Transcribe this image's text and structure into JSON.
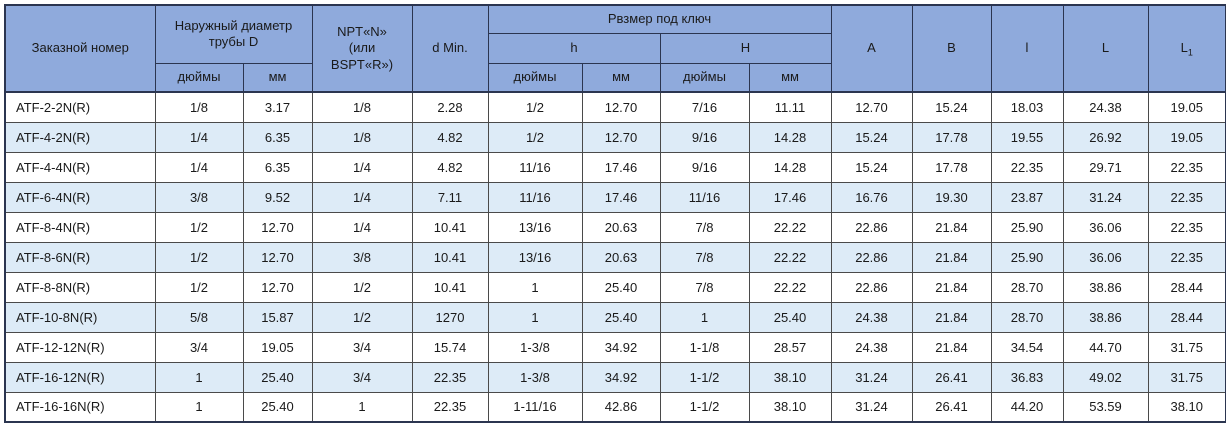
{
  "colors": {
    "header_bg": "#8FAADC",
    "row_bg": "#FFFFFF",
    "row_alt_bg": "#DDEBF7",
    "border": "#4A4A4A",
    "header_border": "#2B3550",
    "text": "#1A1A1A"
  },
  "table": {
    "header": {
      "order_number": "Заказной номер",
      "outer_diameter": "Наружный диаметр трубы D",
      "npt_label": "NPT«N»\n(или\nBSPT«R»)",
      "d_min": "d Min.",
      "wrench_size": "Рвзмер под ключ",
      "h_small": "h",
      "h_big": "H",
      "inches": "дюймы",
      "mm": "мм",
      "a": "A",
      "b": "B",
      "l_small": "l",
      "l_big": "L",
      "l1_base": "L",
      "l1_sub": "1"
    },
    "rows": [
      [
        "ATF-2-2N(R)",
        "1/8",
        "3.17",
        "1/8",
        "2.28",
        "1/2",
        "12.70",
        "7/16",
        "11.11",
        "12.70",
        "15.24",
        "18.03",
        "24.38",
        "19.05"
      ],
      [
        "ATF-4-2N(R)",
        "1/4",
        "6.35",
        "1/8",
        "4.82",
        "1/2",
        "12.70",
        "9/16",
        "14.28",
        "15.24",
        "17.78",
        "19.55",
        "26.92",
        "19.05"
      ],
      [
        "ATF-4-4N(R)",
        "1/4",
        "6.35",
        "1/4",
        "4.82",
        "11/16",
        "17.46",
        "9/16",
        "14.28",
        "15.24",
        "17.78",
        "22.35",
        "29.71",
        "22.35"
      ],
      [
        "ATF-6-4N(R)",
        "3/8",
        "9.52",
        "1/4",
        "7.11",
        "11/16",
        "17.46",
        "11/16",
        "17.46",
        "16.76",
        "19.30",
        "23.87",
        "31.24",
        "22.35"
      ],
      [
        "ATF-8-4N(R)",
        "1/2",
        "12.70",
        "1/4",
        "10.41",
        "13/16",
        "20.63",
        "7/8",
        "22.22",
        "22.86",
        "21.84",
        "25.90",
        "36.06",
        "22.35"
      ],
      [
        "ATF-8-6N(R)",
        "1/2",
        "12.70",
        "3/8",
        "10.41",
        "13/16",
        "20.63",
        "7/8",
        "22.22",
        "22.86",
        "21.84",
        "25.90",
        "36.06",
        "22.35"
      ],
      [
        "ATF-8-8N(R)",
        "1/2",
        "12.70",
        "1/2",
        "10.41",
        "1",
        "25.40",
        "7/8",
        "22.22",
        "22.86",
        "21.84",
        "28.70",
        "38.86",
        "28.44"
      ],
      [
        "ATF-10-8N(R)",
        "5/8",
        "15.87",
        "1/2",
        "1270",
        "1",
        "25.40",
        "1",
        "25.40",
        "24.38",
        "21.84",
        "28.70",
        "38.86",
        "28.44"
      ],
      [
        "ATF-12-12N(R)",
        "3/4",
        "19.05",
        "3/4",
        "15.74",
        "1-3/8",
        "34.92",
        "1-1/8",
        "28.57",
        "24.38",
        "21.84",
        "34.54",
        "44.70",
        "31.75"
      ],
      [
        "ATF-16-12N(R)",
        "1",
        "25.40",
        "3/4",
        "22.35",
        "1-3/8",
        "34.92",
        "1-1/2",
        "38.10",
        "31.24",
        "26.41",
        "36.83",
        "49.02",
        "31.75"
      ],
      [
        "ATF-16-16N(R)",
        "1",
        "25.40",
        "1",
        "22.35",
        "1-11/16",
        "42.86",
        "1-1/2",
        "38.10",
        "31.24",
        "26.41",
        "44.20",
        "53.59",
        "38.10"
      ]
    ]
  }
}
